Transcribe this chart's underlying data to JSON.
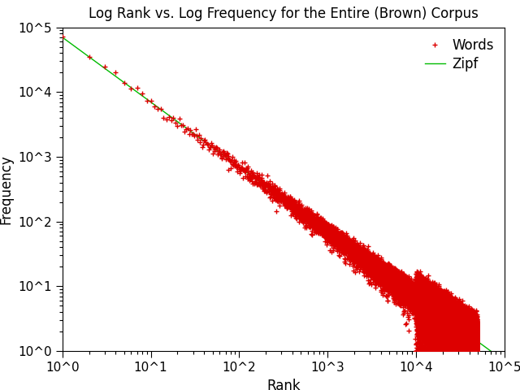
{
  "title": "Log Rank vs. Log Frequency for the Entire (Brown) Corpus",
  "xlabel": "Rank",
  "ylabel": "Frequency",
  "xlim": [
    1,
    100000
  ],
  "ylim": [
    1,
    100000
  ],
  "zipf_constant": 69970.0,
  "zipf_exponent": 1.0,
  "words_color": "#dd0000",
  "zipf_color": "#00bb00",
  "words_label": "Words",
  "zipf_label": "Zipf",
  "marker": "+",
  "markersize": 5,
  "linewidth": 1.0,
  "background_color": "#ffffff",
  "title_fontsize": 12,
  "label_fontsize": 12,
  "legend_fontsize": 12,
  "tick_fontsize": 11,
  "n_words": 49000,
  "seed": 42,
  "noise_factor": 0.08
}
